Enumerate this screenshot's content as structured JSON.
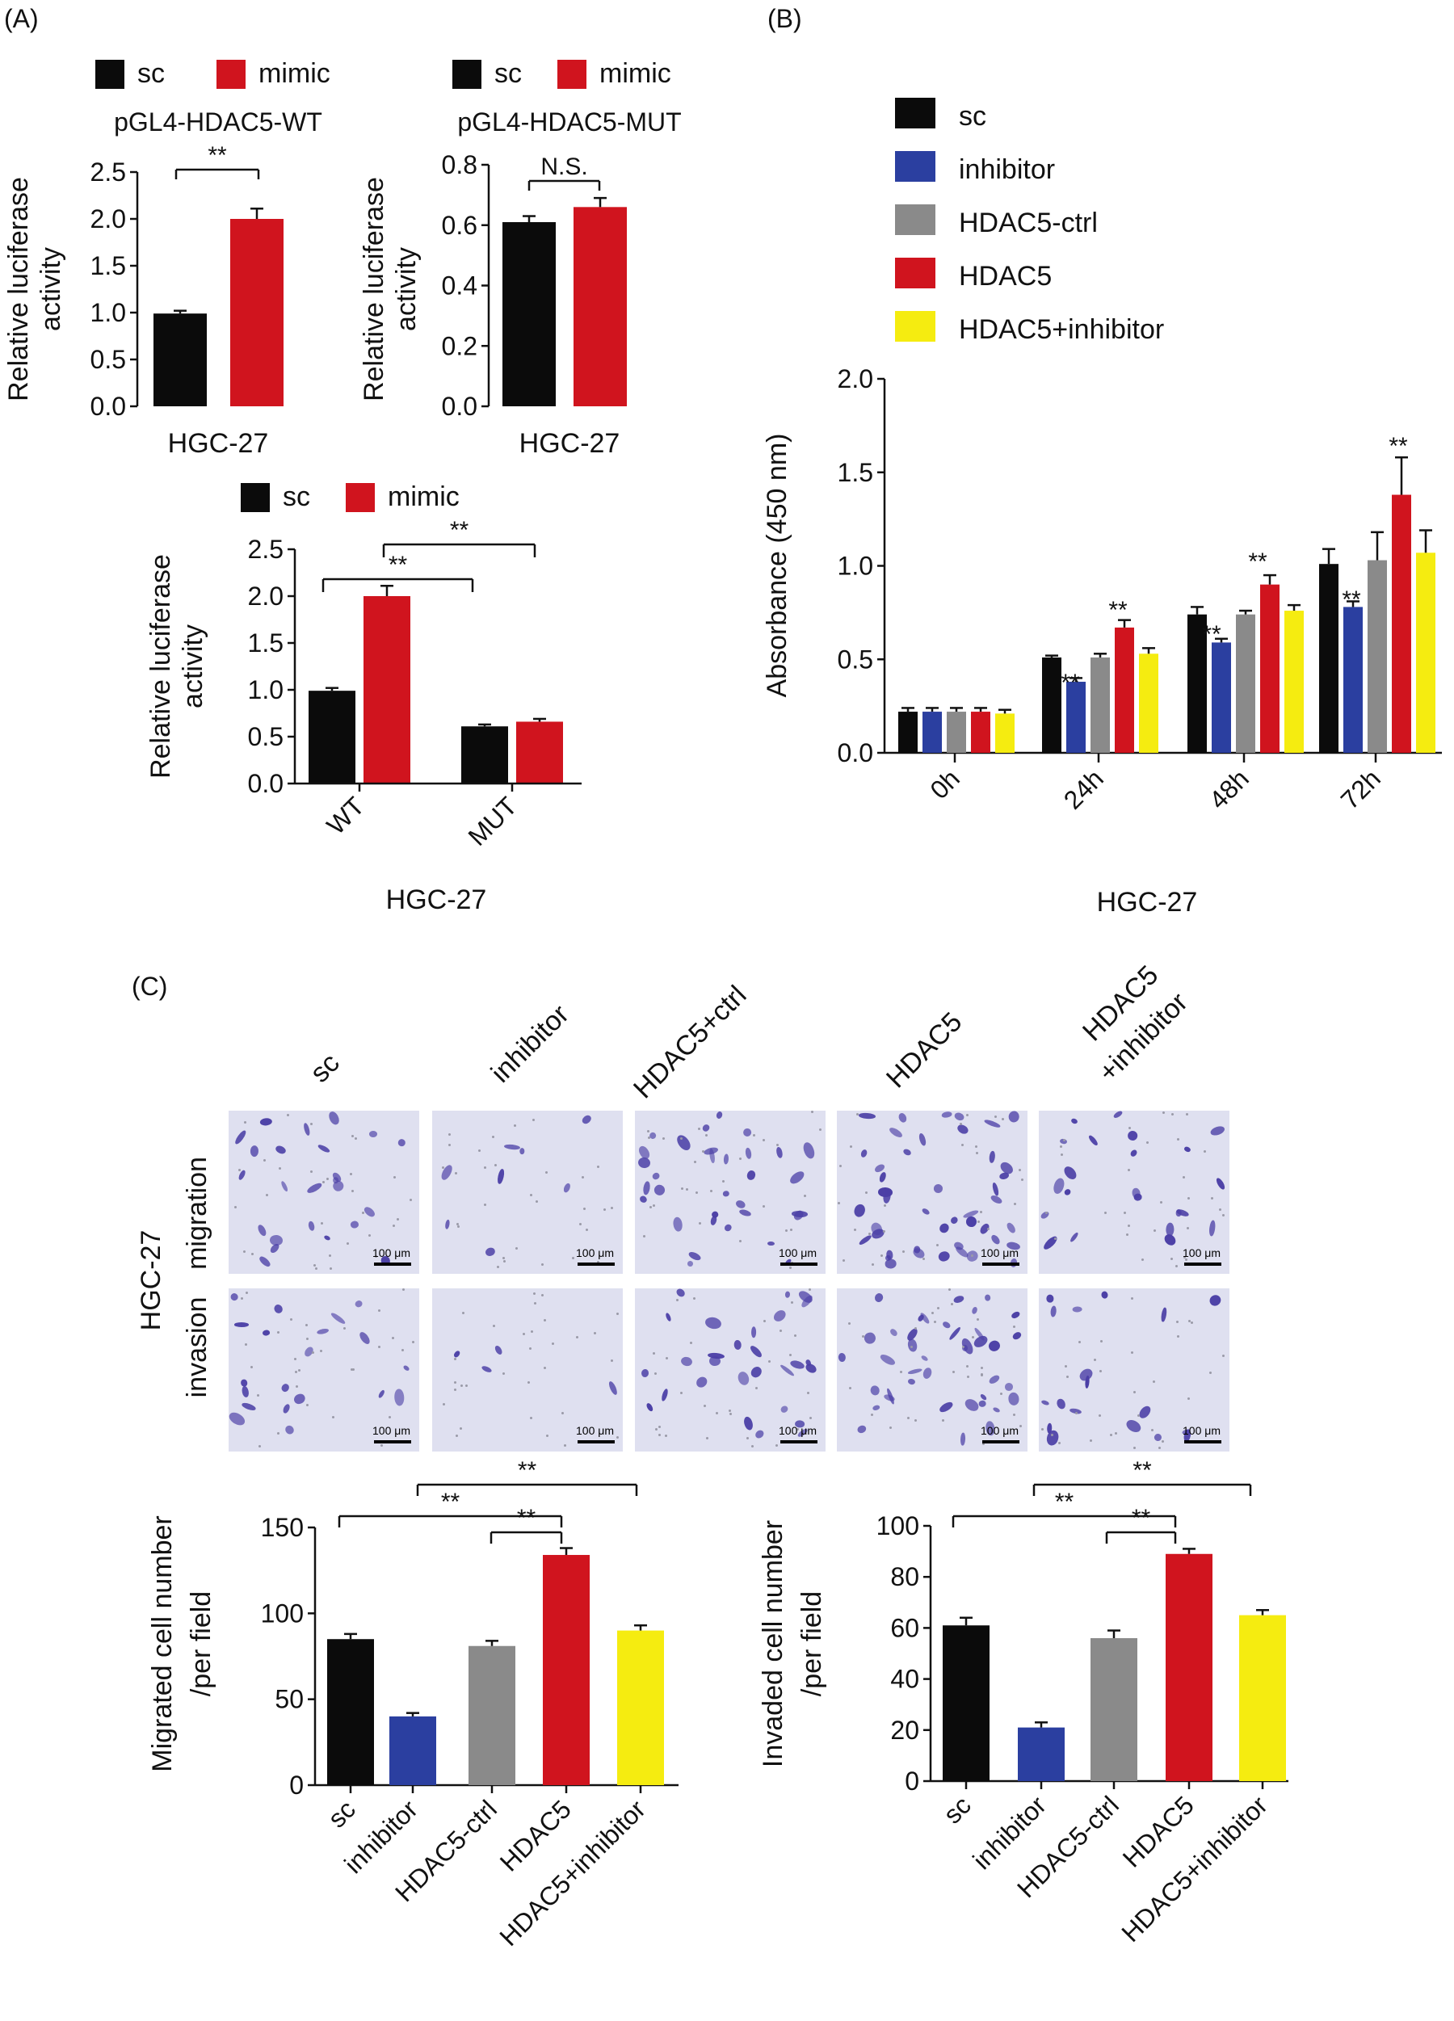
{
  "panels": {
    "a": "(A)",
    "b": "(B)",
    "c": "(C)"
  },
  "colors": {
    "sc": "#0b0b0b",
    "mimic": "#d0141e",
    "inhibitor": "#2b3fa0",
    "hdac5_ctrl": "#8a8a8a",
    "hdac5": "#d0141e",
    "hdac5_inhibitor": "#f5ec10",
    "micro_bg": "#dfe0f0",
    "cell": "#4b3fa6"
  },
  "micro": {
    "row_labels": [
      "migration",
      "invasion"
    ],
    "side_label": "HGC-27",
    "col_labels": [
      "sc",
      "inhibitor",
      "HDAC5+ctrl",
      "HDAC5",
      "HDAC5",
      "+inhibitor"
    ],
    "scale_label": "100 μm"
  },
  "chart_data": [
    {
      "id": "a1",
      "type": "bar",
      "legend": [
        "sc",
        "mimic"
      ],
      "title": "pGL4-HDAC5-WT",
      "ylabel": [
        "Relative luciferase",
        "activity"
      ],
      "xlabel": "HGC-27",
      "ylim": [
        0,
        2.5
      ],
      "ticks": [
        "0.0",
        "0.5",
        "1.0",
        "1.5",
        "2.0",
        "2.5"
      ],
      "series": [
        {
          "name": "sc",
          "values": [
            0.99
          ],
          "error": [
            0.03
          ]
        },
        {
          "name": "mimic",
          "values": [
            2.0
          ],
          "error": [
            0.11
          ]
        }
      ],
      "annotations": [
        "**"
      ]
    },
    {
      "id": "a2",
      "type": "bar",
      "legend": [
        "sc",
        "mimic"
      ],
      "title": "pGL4-HDAC5-MUT",
      "ylabel": [
        "Relative luciferase",
        "activity"
      ],
      "xlabel": "HGC-27",
      "ylim": [
        0,
        0.8
      ],
      "ticks": [
        "0.0",
        "0.2",
        "0.4",
        "0.6",
        "0.8"
      ],
      "series": [
        {
          "name": "sc",
          "values": [
            0.61
          ],
          "error": [
            0.02
          ]
        },
        {
          "name": "mimic",
          "values": [
            0.66
          ],
          "error": [
            0.03
          ]
        }
      ],
      "annotations": [
        "N.S."
      ]
    },
    {
      "id": "a3",
      "type": "bar",
      "legend": [
        "sc",
        "mimic"
      ],
      "ylabel": [
        "Relative luciferase",
        "activity"
      ],
      "xlabel": "HGC-27",
      "categories": [
        "WT",
        "MUT"
      ],
      "ylim": [
        0,
        2.5
      ],
      "ticks": [
        "0.0",
        "0.5",
        "1.0",
        "1.5",
        "2.0",
        "2.5"
      ],
      "series": [
        {
          "name": "sc",
          "values": [
            0.99,
            0.61
          ],
          "error": [
            0.03,
            0.02
          ]
        },
        {
          "name": "mimic",
          "values": [
            2.0,
            0.66
          ],
          "error": [
            0.11,
            0.03
          ]
        }
      ],
      "annotations": [
        "**",
        "**"
      ]
    },
    {
      "id": "b",
      "type": "bar",
      "legend": [
        "sc",
        "inhibitor",
        "HDAC5-ctrl",
        "HDAC5",
        "HDAC5+inhibitor"
      ],
      "ylabel": "Absorbance (450 nm)",
      "xlabel": "HGC-27",
      "categories": [
        "0h",
        "24h",
        "48h",
        "72h"
      ],
      "ylim": [
        0,
        2.0
      ],
      "ticks": [
        "0.0",
        "0.5",
        "1.0",
        "1.5",
        "2.0"
      ],
      "series": [
        {
          "name": "sc",
          "values": [
            0.22,
            0.51,
            0.74,
            1.01
          ],
          "error": [
            0.02,
            0.01,
            0.04,
            0.08
          ]
        },
        {
          "name": "inhibitor",
          "values": [
            0.22,
            0.38,
            0.59,
            0.78
          ],
          "error": [
            0.02,
            0.02,
            0.02,
            0.03
          ]
        },
        {
          "name": "HDAC5-ctrl",
          "values": [
            0.22,
            0.51,
            0.74,
            1.03
          ],
          "error": [
            0.02,
            0.02,
            0.02,
            0.15
          ]
        },
        {
          "name": "HDAC5",
          "values": [
            0.22,
            0.67,
            0.9,
            1.38
          ],
          "error": [
            0.02,
            0.04,
            0.05,
            0.2
          ]
        },
        {
          "name": "HDAC5+inhibitor",
          "values": [
            0.21,
            0.53,
            0.76,
            1.07
          ],
          "error": [
            0.02,
            0.03,
            0.03,
            0.12
          ]
        }
      ],
      "annotations": [
        "**"
      ]
    },
    {
      "id": "c1",
      "type": "bar",
      "ylabel": [
        "Migrated cell number",
        "/per field"
      ],
      "categories": [
        "sc",
        "inhibitor",
        "HDAC5-ctrl",
        "HDAC5",
        "HDAC5+inhibitor"
      ],
      "ylim": [
        0,
        150
      ],
      "ticks": [
        "0",
        "50",
        "100",
        "150"
      ],
      "values": [
        85,
        40,
        81,
        134,
        90
      ],
      "error": [
        3,
        2,
        3,
        4,
        3
      ],
      "annotations": [
        "**"
      ]
    },
    {
      "id": "c2",
      "type": "bar",
      "ylabel": [
        "Invaded cell number",
        "/per field"
      ],
      "categories": [
        "sc",
        "inhibitor",
        "HDAC5-ctrl",
        "HDAC5",
        "HDAC5+inhibitor"
      ],
      "ylim": [
        0,
        100
      ],
      "ticks": [
        "0",
        "20",
        "40",
        "60",
        "80",
        "100"
      ],
      "values": [
        61,
        21,
        56,
        89,
        65
      ],
      "error": [
        3,
        2,
        3,
        2,
        2
      ],
      "annotations": [
        "**"
      ]
    }
  ]
}
